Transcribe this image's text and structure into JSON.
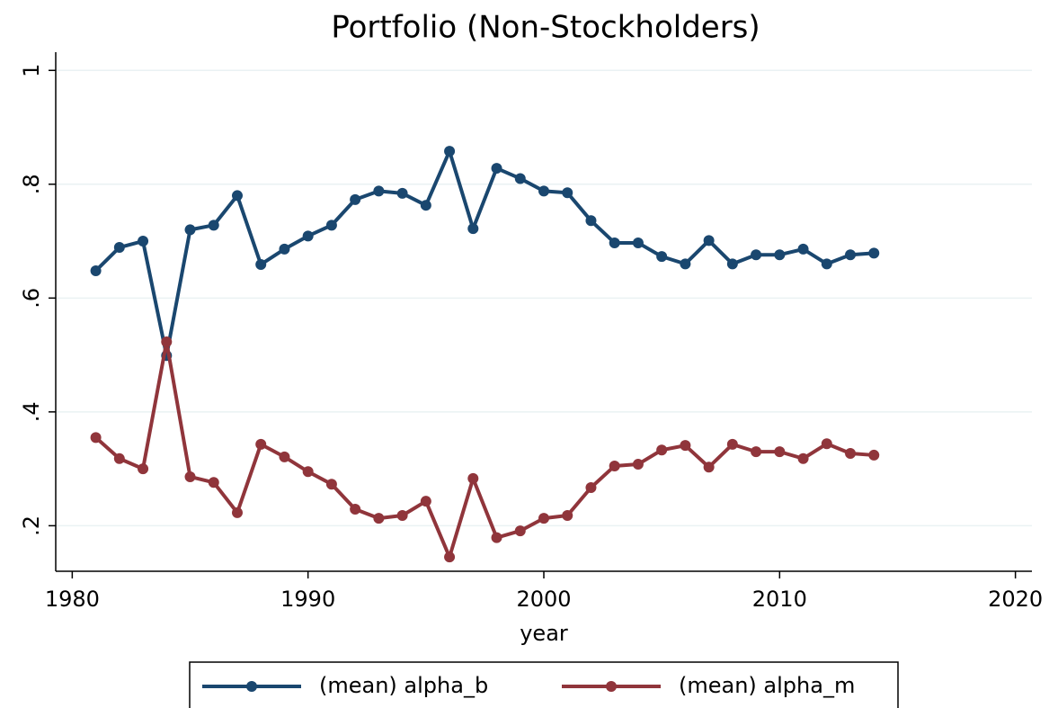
{
  "chart_data": {
    "type": "line",
    "title": "Portfolio (Non-Stockholders)",
    "x_label": "year",
    "x": [
      1981,
      1982,
      1983,
      1984,
      1985,
      1986,
      1987,
      1988,
      1989,
      1990,
      1991,
      1992,
      1993,
      1994,
      1995,
      1996,
      1997,
      1998,
      1999,
      2000,
      2001,
      2002,
      2003,
      2004,
      2005,
      2006,
      2007,
      2008,
      2009,
      2010,
      2011,
      2012,
      2013,
      2014
    ],
    "series": [
      {
        "name": "(mean) alpha_b",
        "color": "#1a476f",
        "values": [
          0.648,
          0.689,
          0.7,
          0.499,
          0.72,
          0.728,
          0.78,
          0.659,
          0.686,
          0.709,
          0.728,
          0.773,
          0.788,
          0.784,
          0.763,
          0.858,
          0.722,
          0.828,
          0.81,
          0.788,
          0.785,
          0.736,
          0.697,
          0.697,
          0.673,
          0.66,
          0.701,
          0.66,
          0.676,
          0.676,
          0.686,
          0.66,
          0.676,
          0.679
        ]
      },
      {
        "name": "(mean) alpha_m",
        "color": "#90353b",
        "values": [
          0.355,
          0.318,
          0.3,
          0.523,
          0.286,
          0.276,
          0.223,
          0.343,
          0.321,
          0.295,
          0.273,
          0.229,
          0.213,
          0.218,
          0.243,
          0.145,
          0.283,
          0.179,
          0.191,
          0.213,
          0.218,
          0.267,
          0.305,
          0.308,
          0.333,
          0.341,
          0.303,
          0.343,
          0.33,
          0.33,
          0.318,
          0.344,
          0.327,
          0.324
        ]
      }
    ],
    "xlim": [
      1979.3,
      2020.7
    ],
    "xticks": [
      1980,
      1990,
      2000,
      2010,
      2020
    ],
    "ylim": [
      0.12,
      1.032
    ],
    "yticks": [
      {
        "value": 0.2,
        "label": ".2"
      },
      {
        "value": 0.4,
        "label": ".4"
      },
      {
        "value": 0.6,
        "label": ".6"
      },
      {
        "value": 0.8,
        "label": ".8"
      },
      1
    ],
    "grid": true,
    "legend": "bottom"
  }
}
